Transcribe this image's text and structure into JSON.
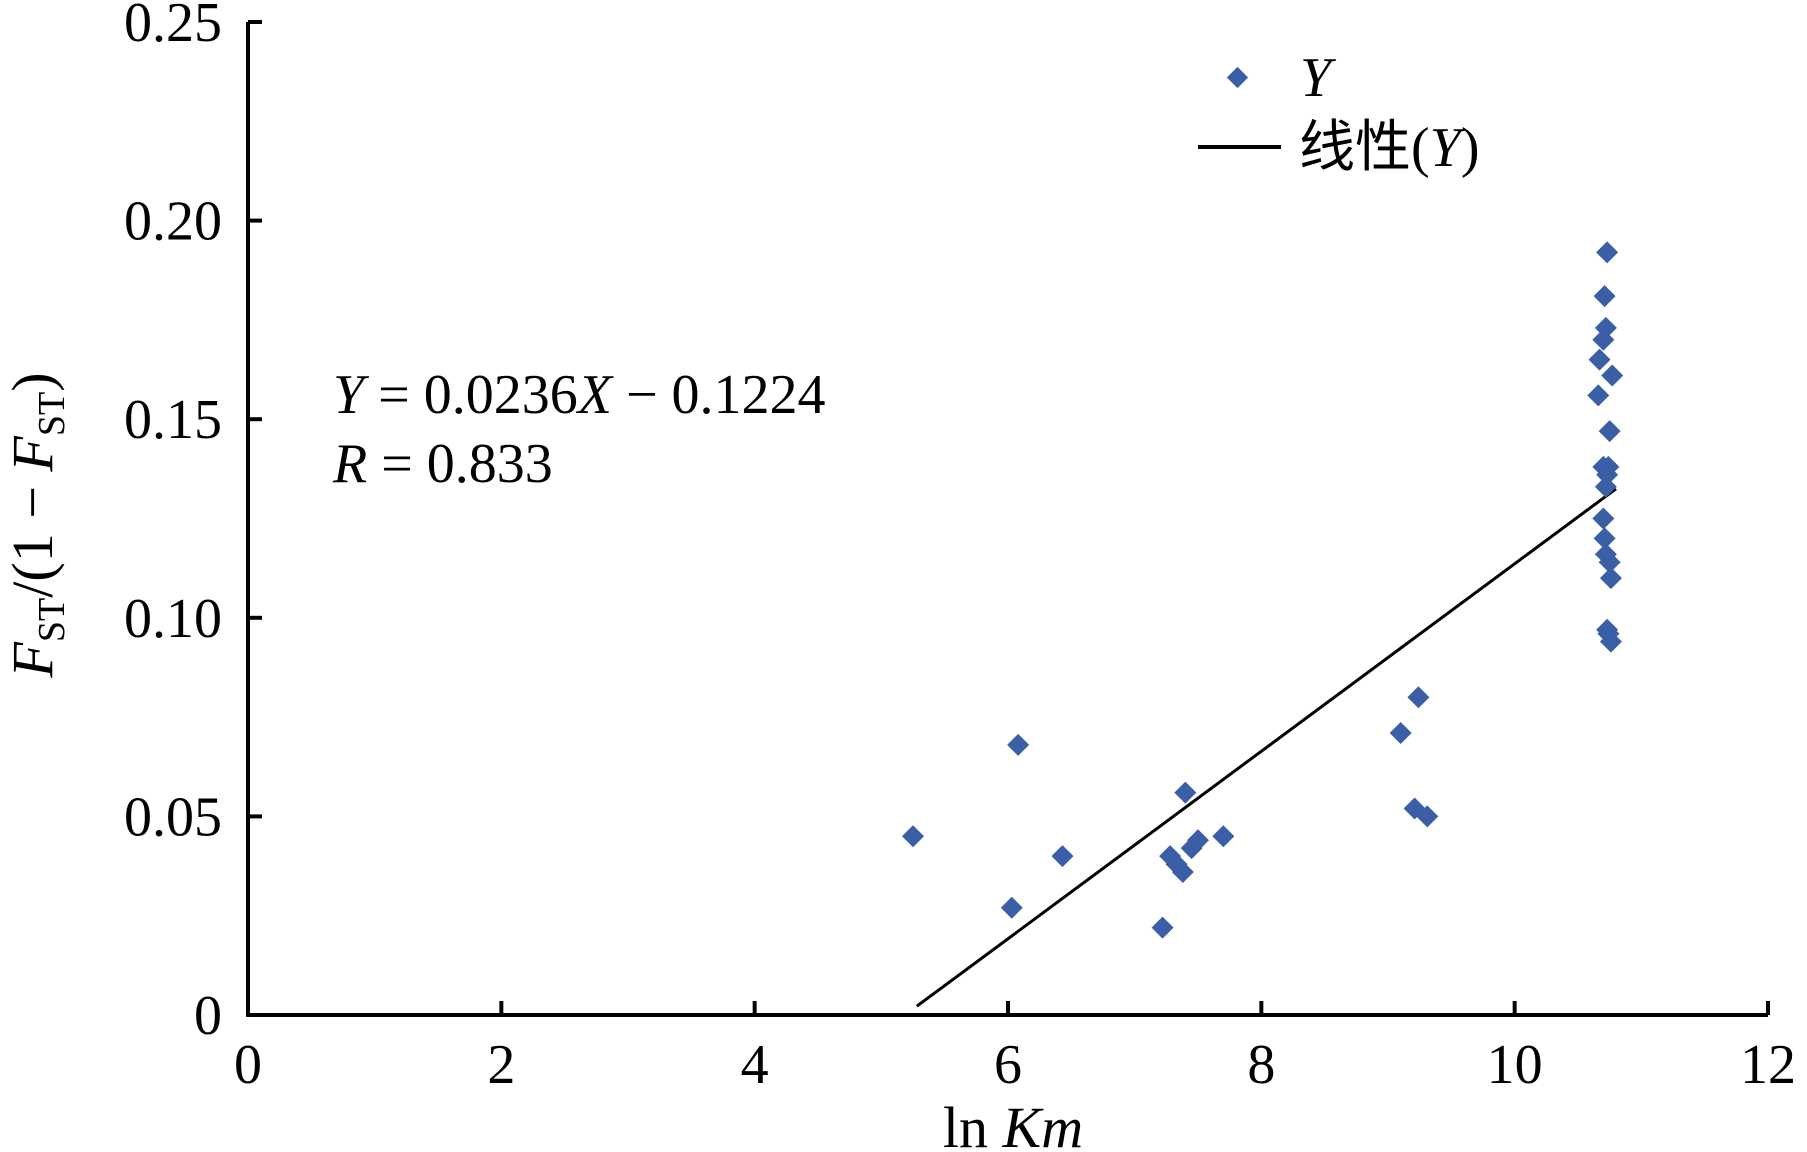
{
  "chart_data": {
    "type": "scatter",
    "title": "",
    "xlabel": {
      "prefix": "ln ",
      "italic": "Km"
    },
    "ylabel": {
      "f": "F",
      "sub": "ST",
      "mid": "/(1 − ",
      "f2": "F",
      "sub2": "ST",
      "close": ")"
    },
    "xlim": [
      0,
      12
    ],
    "ylim": [
      0,
      0.25
    ],
    "x_ticks": [
      0,
      2,
      4,
      6,
      8,
      10,
      12
    ],
    "x_tick_labels": [
      "0",
      "2",
      "4",
      "6",
      "8",
      "10",
      "12"
    ],
    "y_ticks": [
      0,
      0.05,
      0.1,
      0.15,
      0.2,
      0.25
    ],
    "y_tick_labels": [
      "0",
      "0.05",
      "0.10",
      "0.15",
      "0.20",
      "0.25"
    ],
    "grid": false,
    "legend_position": "top-right",
    "legend": [
      {
        "label": "Y",
        "kind": "marker"
      },
      {
        "label_prefix": "线性(",
        "label_italic": "Y",
        "label_suffix": ")",
        "kind": "line"
      }
    ],
    "annotation": {
      "eq_y": "Y",
      "eq_rest": " = 0.0236",
      "eq_x": "X",
      "eq_tail": " − 0.1224",
      "r_label": "R",
      "r_value": " = 0.833"
    },
    "colors": {
      "marker": "#3a5fa6",
      "line": "#000000",
      "axis": "#000000"
    },
    "series": [
      {
        "name": "Y",
        "points": [
          [
            5.25,
            0.045
          ],
          [
            6.03,
            0.027
          ],
          [
            6.08,
            0.068
          ],
          [
            6.43,
            0.04
          ],
          [
            7.22,
            0.022
          ],
          [
            7.28,
            0.04
          ],
          [
            7.33,
            0.038
          ],
          [
            7.38,
            0.036
          ],
          [
            7.4,
            0.056
          ],
          [
            7.45,
            0.042
          ],
          [
            7.5,
            0.044
          ],
          [
            7.7,
            0.045
          ],
          [
            9.1,
            0.071
          ],
          [
            9.21,
            0.052
          ],
          [
            9.24,
            0.08
          ],
          [
            9.31,
            0.05
          ],
          [
            10.66,
            0.156
          ],
          [
            10.67,
            0.165
          ],
          [
            10.7,
            0.17
          ],
          [
            10.71,
            0.181
          ],
          [
            10.72,
            0.173
          ],
          [
            10.73,
            0.192
          ],
          [
            10.77,
            0.161
          ],
          [
            10.7,
            0.138
          ],
          [
            10.74,
            0.138
          ],
          [
            10.75,
            0.147
          ],
          [
            10.72,
            0.133
          ],
          [
            10.73,
            0.136
          ],
          [
            10.7,
            0.125
          ],
          [
            10.71,
            0.12
          ],
          [
            10.72,
            0.116
          ],
          [
            10.75,
            0.114
          ],
          [
            10.76,
            0.11
          ],
          [
            10.73,
            0.097
          ],
          [
            10.74,
            0.096
          ],
          [
            10.76,
            0.094
          ]
        ]
      }
    ],
    "trendline": {
      "slope": 0.0236,
      "intercept": -0.1224,
      "x_start": 5.28,
      "x_end": 10.8
    }
  }
}
